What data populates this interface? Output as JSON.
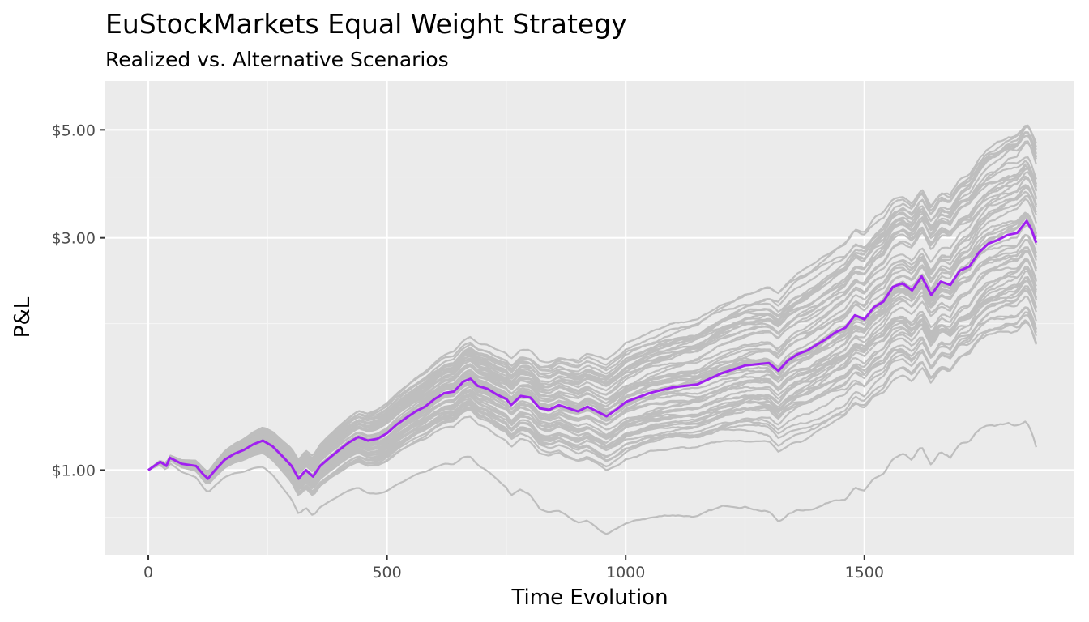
{
  "chart_data": {
    "type": "line",
    "title": "EuStockMarkets Equal Weight Strategy",
    "subtitle": "Realized vs. Alternative Scenarios",
    "xlabel": "Time Evolution",
    "ylabel": "P&L",
    "x_scale": "linear",
    "y_scale": "log",
    "xlim": [
      -90,
      1940
    ],
    "ylim": [
      0.67,
      6.3
    ],
    "x_ticks": [
      0,
      500,
      1000,
      1500
    ],
    "x_tick_labels": [
      "0",
      "500",
      "1000",
      "1500"
    ],
    "y_ticks": [
      1,
      3,
      5
    ],
    "y_tick_labels": [
      "$1.00",
      "$3.00",
      "$5.00"
    ],
    "grid": true,
    "legend": "none",
    "colors": {
      "panel_background": "#ebebeb",
      "grid_major": "#ffffff",
      "grid_minor": "#f5f5f5",
      "scenario_lines": "#bebebe",
      "realized_line": "#a020f0"
    },
    "series": [
      {
        "role": "realized",
        "color": "#a020f0",
        "x": [
          0,
          25,
          38,
          45,
          70,
          100,
          115,
          125,
          140,
          160,
          180,
          200,
          220,
          240,
          260,
          280,
          300,
          315,
          330,
          345,
          360,
          380,
          400,
          420,
          440,
          460,
          480,
          500,
          520,
          540,
          560,
          580,
          600,
          620,
          640,
          660,
          675,
          690,
          710,
          730,
          750,
          760,
          780,
          800,
          820,
          840,
          860,
          880,
          900,
          920,
          940,
          960,
          980,
          1000,
          1050,
          1100,
          1150,
          1200,
          1250,
          1300,
          1320,
          1340,
          1360,
          1380,
          1400,
          1420,
          1440,
          1460,
          1480,
          1500,
          1520,
          1540,
          1560,
          1580,
          1600,
          1620,
          1640,
          1660,
          1680,
          1700,
          1720,
          1740,
          1760,
          1780,
          1800,
          1820,
          1840,
          1850,
          1860
        ],
        "y": [
          1.0,
          1.04,
          1.02,
          1.06,
          1.03,
          1.02,
          0.98,
          0.96,
          1.0,
          1.05,
          1.08,
          1.1,
          1.13,
          1.15,
          1.12,
          1.07,
          1.02,
          0.96,
          1.0,
          0.97,
          1.02,
          1.06,
          1.1,
          1.14,
          1.17,
          1.15,
          1.16,
          1.19,
          1.24,
          1.28,
          1.32,
          1.35,
          1.4,
          1.44,
          1.45,
          1.52,
          1.54,
          1.49,
          1.47,
          1.43,
          1.4,
          1.36,
          1.42,
          1.41,
          1.34,
          1.33,
          1.36,
          1.34,
          1.32,
          1.35,
          1.32,
          1.29,
          1.33,
          1.38,
          1.44,
          1.48,
          1.5,
          1.58,
          1.64,
          1.66,
          1.6,
          1.68,
          1.73,
          1.76,
          1.81,
          1.86,
          1.92,
          1.96,
          2.08,
          2.04,
          2.16,
          2.22,
          2.38,
          2.42,
          2.34,
          2.5,
          2.29,
          2.44,
          2.4,
          2.57,
          2.62,
          2.8,
          2.92,
          2.97,
          3.04,
          3.07,
          3.25,
          3.12,
          2.93
        ]
      }
    ]
  }
}
